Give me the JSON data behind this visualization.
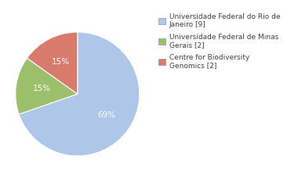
{
  "labels": [
    "Universidade Federal do Rio de\nJaneiro [9]",
    "Universidade Federal de Minas\nGerais [2]",
    "Centre for Biodiversity\nGenomics [2]"
  ],
  "values": [
    69,
    15,
    15
  ],
  "colors": [
    "#aec6e8",
    "#9bbf6b",
    "#d97b6c"
  ],
  "pct_labels": [
    "69%",
    "15%",
    "15%"
  ],
  "startangle": 90,
  "background_color": "#ffffff",
  "text_color": "#404040",
  "fontsize": 7.5,
  "legend_fontsize": 6.5
}
